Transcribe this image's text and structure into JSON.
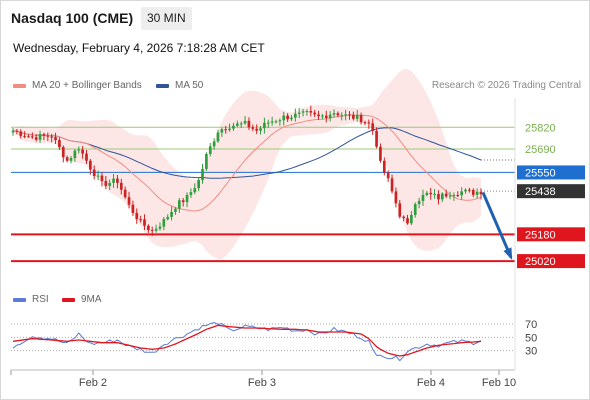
{
  "header": {
    "instrument": "Nasdaq 100 (CME)",
    "timeframe": "30 MIN",
    "datetime": "Wednesday, February 4, 2026 7:18:28 AM CET"
  },
  "legend": {
    "ma20_label": "MA 20 + Bollinger Bands",
    "ma20_color": "#f28b82",
    "ma50_label": "MA 50",
    "ma50_color": "#2f5597",
    "copyright": "Research © 2026 Trading Central"
  },
  "rsi_legend": {
    "rsi_label": "RSI",
    "rsi_color": "#5b7bd5",
    "ma9_label": "9MA",
    "ma9_color": "#e0161e"
  },
  "chart_data": {
    "type": "candlestick",
    "price_range": [
      24895,
      25995
    ],
    "x_labels": [
      "Feb 2",
      "Feb 3",
      "Feb 4",
      "Feb 10"
    ],
    "levels": [
      {
        "value": 25820,
        "label": "25820",
        "kind": "resistance",
        "color": "#9bc97a"
      },
      {
        "value": 25690,
        "label": "25690",
        "kind": "resistance",
        "color": "#9bc97a"
      },
      {
        "value": 25550,
        "label": "25550",
        "kind": "pivot",
        "color": "#1f6fd1"
      },
      {
        "value": 25438,
        "label": "25438",
        "kind": "last_price",
        "color": "#333333"
      },
      {
        "value": 25180,
        "label": "25180",
        "kind": "support",
        "color": "#e0161e"
      },
      {
        "value": 25020,
        "label": "25020",
        "kind": "support",
        "color": "#e0161e"
      }
    ],
    "forecast": {
      "from": 25430,
      "to": 25030,
      "color": "#2060b0"
    },
    "close_path": [
      [
        0,
        25800
      ],
      [
        5,
        25760
      ],
      [
        10,
        25770
      ],
      [
        14,
        25620
      ],
      [
        17,
        25700
      ],
      [
        20,
        25580
      ],
      [
        23,
        25480
      ],
      [
        27,
        25500
      ],
      [
        30,
        25350
      ],
      [
        33,
        25250
      ],
      [
        36,
        25200
      ],
      [
        39,
        25260
      ],
      [
        42,
        25350
      ],
      [
        45,
        25400
      ],
      [
        48,
        25500
      ],
      [
        50,
        25650
      ],
      [
        53,
        25800
      ],
      [
        56,
        25830
      ],
      [
        60,
        25840
      ],
      [
        63,
        25800
      ],
      [
        66,
        25850
      ],
      [
        70,
        25880
      ],
      [
        73,
        25890
      ],
      [
        76,
        25900
      ],
      [
        79,
        25880
      ],
      [
        83,
        25910
      ],
      [
        86,
        25890
      ],
      [
        90,
        25870
      ],
      [
        92,
        25840
      ],
      [
        93,
        25800
      ],
      [
        94,
        25720
      ],
      [
        95,
        25600
      ],
      [
        97,
        25500
      ],
      [
        100,
        25300
      ],
      [
        102,
        25230
      ],
      [
        104,
        25380
      ],
      [
        107,
        25420
      ],
      [
        110,
        25400
      ],
      [
        113,
        25430
      ],
      [
        116,
        25435
      ],
      [
        119,
        25430
      ],
      [
        121,
        25438
      ]
    ],
    "candle_count": 122,
    "rsi": {
      "levels": [
        70,
        50,
        30
      ],
      "range": [
        10,
        85
      ],
      "rsi_path": [
        [
          0,
          36
        ],
        [
          5,
          52
        ],
        [
          10,
          48
        ],
        [
          14,
          40
        ],
        [
          17,
          55
        ],
        [
          20,
          40
        ],
        [
          23,
          42
        ],
        [
          27,
          46
        ],
        [
          30,
          36
        ],
        [
          33,
          32
        ],
        [
          36,
          26
        ],
        [
          39,
          40
        ],
        [
          42,
          48
        ],
        [
          45,
          55
        ],
        [
          48,
          64
        ],
        [
          50,
          68
        ],
        [
          53,
          72
        ],
        [
          56,
          60
        ],
        [
          60,
          66
        ],
        [
          63,
          64
        ],
        [
          66,
          62
        ],
        [
          70,
          65
        ],
        [
          73,
          60
        ],
        [
          76,
          62
        ],
        [
          79,
          54
        ],
        [
          83,
          62
        ],
        [
          86,
          58
        ],
        [
          90,
          50
        ],
        [
          92,
          44
        ],
        [
          93,
          30
        ],
        [
          94,
          22
        ],
        [
          95,
          26
        ],
        [
          97,
          20
        ],
        [
          100,
          18
        ],
        [
          102,
          30
        ],
        [
          104,
          34
        ],
        [
          107,
          40
        ],
        [
          110,
          38
        ],
        [
          113,
          42
        ],
        [
          116,
          44
        ],
        [
          119,
          42
        ],
        [
          121,
          46
        ]
      ],
      "ma9_path": [
        [
          0,
          44
        ],
        [
          5,
          48
        ],
        [
          10,
          46
        ],
        [
          14,
          44
        ],
        [
          17,
          46
        ],
        [
          20,
          44
        ],
        [
          23,
          42
        ],
        [
          27,
          42
        ],
        [
          30,
          38
        ],
        [
          33,
          34
        ],
        [
          36,
          32
        ],
        [
          39,
          34
        ],
        [
          42,
          40
        ],
        [
          45,
          48
        ],
        [
          48,
          56
        ],
        [
          50,
          62
        ],
        [
          53,
          68
        ],
        [
          56,
          66
        ],
        [
          60,
          64
        ],
        [
          63,
          64
        ],
        [
          66,
          63
        ],
        [
          70,
          62
        ],
        [
          73,
          62
        ],
        [
          76,
          61
        ],
        [
          79,
          58
        ],
        [
          83,
          58
        ],
        [
          86,
          58
        ],
        [
          90,
          55
        ],
        [
          92,
          48
        ],
        [
          93,
          42
        ],
        [
          94,
          36
        ],
        [
          95,
          32
        ],
        [
          97,
          26
        ],
        [
          100,
          22
        ],
        [
          102,
          24
        ],
        [
          104,
          28
        ],
        [
          107,
          34
        ],
        [
          110,
          38
        ],
        [
          113,
          40
        ],
        [
          116,
          42
        ],
        [
          119,
          43
        ],
        [
          121,
          44
        ]
      ]
    }
  }
}
